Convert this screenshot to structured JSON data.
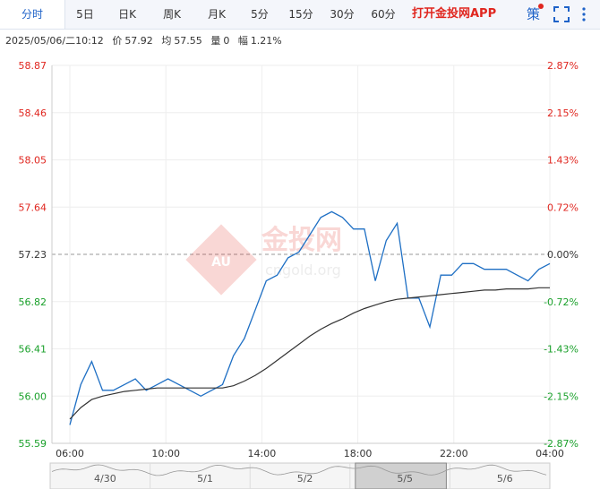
{
  "tabs": [
    {
      "label": "分时",
      "active": true
    },
    {
      "label": "5日"
    },
    {
      "label": "日K"
    },
    {
      "label": "周K"
    },
    {
      "label": "月K"
    },
    {
      "label": "5分"
    },
    {
      "label": "15分"
    },
    {
      "label": "30分"
    },
    {
      "label": "60分"
    }
  ],
  "promo": "打开金投网APP",
  "tools": {
    "strategy_label": "策"
  },
  "info": {
    "datetime": "2025/05/06/二10:12",
    "price_label": "价",
    "price": "57.92",
    "avg_label": "均",
    "avg": "57.55",
    "volume_label": "量",
    "volume": "0",
    "change_label": "幅",
    "change": "1.21%"
  },
  "watermark": {
    "text": "金投网",
    "url": "cngold.org",
    "badge": "AU"
  },
  "colors": {
    "price_line": "#1e6fc4",
    "avg_line": "#333333",
    "up": "#e0261f",
    "down": "#19a02a",
    "accent": "#1e62c8"
  },
  "chart_data": {
    "type": "line",
    "prev_close": 57.23,
    "ylim": [
      55.59,
      58.87
    ],
    "y_ticks": [
      "58.87",
      "58.46",
      "58.05",
      "57.64",
      "57.23",
      "56.82",
      "56.41",
      "56.00",
      "55.59"
    ],
    "pct_ticks": [
      "2.87%",
      "2.15%",
      "1.43%",
      "0.72%",
      "0.00%",
      "-0.72%",
      "-1.43%",
      "-2.15%",
      "-2.87%"
    ],
    "x_ticks": [
      "06:00",
      "10:00",
      "14:00",
      "18:00",
      "22:00",
      "04:00"
    ],
    "series": [
      {
        "name": "价",
        "x": [
          "06:00",
          "06:30",
          "07:00",
          "07:30",
          "08:00",
          "08:30",
          "09:00",
          "09:30",
          "10:00",
          "10:30",
          "11:00",
          "11:30",
          "12:00",
          "12:30",
          "13:00",
          "13:30",
          "14:00",
          "14:30",
          "15:00",
          "15:30",
          "16:00",
          "16:30",
          "17:00",
          "17:30",
          "18:00",
          "18:30",
          "19:00",
          "19:30",
          "20:00",
          "20:30",
          "21:00",
          "21:30",
          "22:00",
          "22:30",
          "23:00",
          "23:30",
          "00:00",
          "00:30",
          "01:00",
          "01:30",
          "02:00",
          "02:30",
          "03:00",
          "03:30",
          "04:00"
        ],
        "values": [
          55.75,
          56.1,
          56.3,
          56.05,
          56.05,
          56.1,
          56.15,
          56.05,
          56.1,
          56.15,
          56.1,
          56.05,
          56.0,
          56.05,
          56.1,
          56.35,
          56.5,
          56.75,
          57.0,
          57.05,
          57.2,
          57.25,
          57.4,
          57.55,
          57.6,
          57.55,
          57.45,
          57.45,
          57.0,
          57.35,
          57.5,
          56.85,
          56.85,
          56.6,
          57.05,
          57.05,
          57.15,
          57.15,
          57.1,
          57.1,
          57.1,
          57.05,
          57.0,
          57.1,
          57.15
        ]
      },
      {
        "name": "均",
        "x": [
          "06:00",
          "06:30",
          "07:00",
          "07:30",
          "08:00",
          "08:30",
          "09:00",
          "09:30",
          "10:00",
          "10:30",
          "11:00",
          "11:30",
          "12:00",
          "12:30",
          "13:00",
          "13:30",
          "14:00",
          "14:30",
          "15:00",
          "15:30",
          "16:00",
          "16:30",
          "17:00",
          "17:30",
          "18:00",
          "18:30",
          "19:00",
          "19:30",
          "20:00",
          "20:30",
          "21:00",
          "21:30",
          "22:00",
          "22:30",
          "23:00",
          "23:30",
          "00:00",
          "00:30",
          "01:00",
          "01:30",
          "02:00",
          "02:30",
          "03:00",
          "03:30",
          "04:00"
        ],
        "values": [
          55.8,
          55.9,
          55.97,
          56.0,
          56.02,
          56.04,
          56.05,
          56.06,
          56.07,
          56.07,
          56.07,
          56.07,
          56.07,
          56.07,
          56.07,
          56.09,
          56.13,
          56.18,
          56.24,
          56.31,
          56.38,
          56.45,
          56.52,
          56.58,
          56.63,
          56.67,
          56.72,
          56.76,
          56.79,
          56.82,
          56.84,
          56.85,
          56.86,
          56.87,
          56.88,
          56.89,
          56.9,
          56.91,
          56.92,
          56.92,
          56.93,
          56.93,
          56.93,
          56.94,
          56.94
        ]
      }
    ]
  },
  "navigator": {
    "labels": [
      "4/30",
      "5/1",
      "5/2",
      "5/5",
      "5/6"
    ],
    "selected": "5/5"
  }
}
